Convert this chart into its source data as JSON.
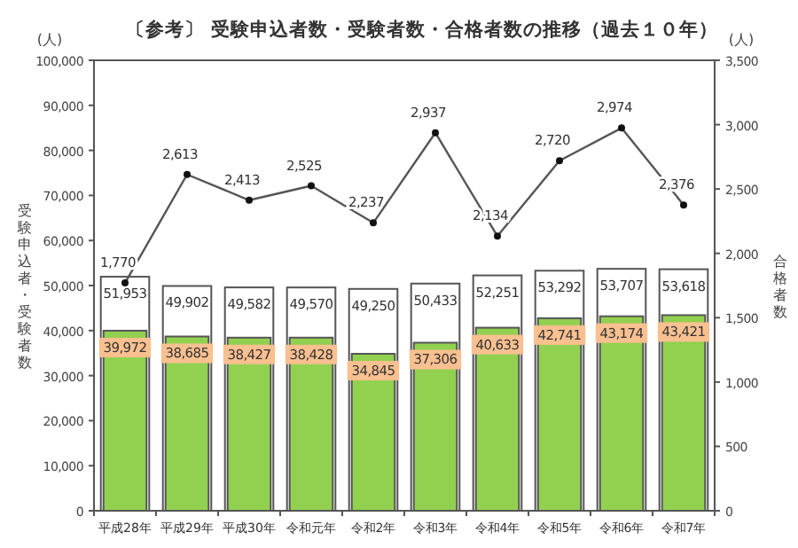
{
  "chart_data": {
    "type": "bar",
    "title": "〔参考〕 受験申込者数・受験者数・合格者数の推移（過去１０年）",
    "ylabel": "受験申込者・受験者数",
    "y2label": "合格者数",
    "annotations": [
      "(人)",
      "(人)"
    ],
    "categories": [
      "平成28年",
      "平成29年",
      "平成30年",
      "令和元年",
      "令和2年",
      "令和3年",
      "令和4年",
      "令和5年",
      "令和6年",
      "令和7年"
    ],
    "series": [
      {
        "color": "#ffffff",
        "values": [
          51953,
          49902,
          49582,
          49570,
          49250,
          50433,
          52251,
          53292,
          53707,
          53618
        ],
        "value_labels": [
          "51,953",
          "49,902",
          "49,582",
          "49,570",
          "49,250",
          "50,433",
          "52,251",
          "53,292",
          "53,707",
          "53,618"
        ]
      },
      {
        "color": "#92d050",
        "values": [
          39972,
          38685,
          38427,
          38428,
          34845,
          37306,
          40633,
          42741,
          43174,
          43421
        ],
        "value_labels": [
          "39,972",
          "38,685",
          "38,427",
          "38,428",
          "34,845",
          "37,306",
          "40,633",
          "42,741",
          "43,174",
          "43,421"
        ]
      },
      {
        "type": "line",
        "axis": "y2",
        "color": "#555555",
        "marker": "circle",
        "values": [
          1770,
          2613,
          2413,
          2525,
          2237,
          2937,
          2134,
          2720,
          2974,
          2376
        ],
        "value_labels": [
          "1,770",
          "2,613",
          "2,413",
          "2,525",
          "2,237",
          "2,937",
          "2,134",
          "2,720",
          "2,974",
          "2,376"
        ]
      }
    ],
    "ylim": [
      0,
      100000
    ],
    "yticks": [
      0,
      {
        "value": 10000,
        "label": "10,000"
      },
      {
        "value": 20000,
        "label": "20,000"
      },
      {
        "value": 30000,
        "label": "30,000"
      },
      {
        "value": 40000,
        "label": "40,000"
      },
      {
        "value": 50000,
        "label": "50,000"
      },
      {
        "value": 60000,
        "label": "60,000"
      },
      {
        "value": 70000,
        "label": "70,000"
      },
      {
        "value": 80000,
        "label": "80,000"
      },
      {
        "value": 90000,
        "label": "90,000"
      },
      {
        "value": 100000,
        "label": "100,000"
      }
    ],
    "y2lim": [
      0,
      3500
    ],
    "y2ticks": [
      0,
      500,
      {
        "value": 1000,
        "label": "1,000"
      },
      {
        "value": 1500,
        "label": "1,500"
      },
      {
        "value": 2000,
        "label": "2,000"
      },
      {
        "value": 2500,
        "label": "2,500"
      },
      {
        "value": 3000,
        "label": "3,000"
      },
      {
        "value": 3500,
        "label": "3,500"
      }
    ],
    "grid": false
  }
}
